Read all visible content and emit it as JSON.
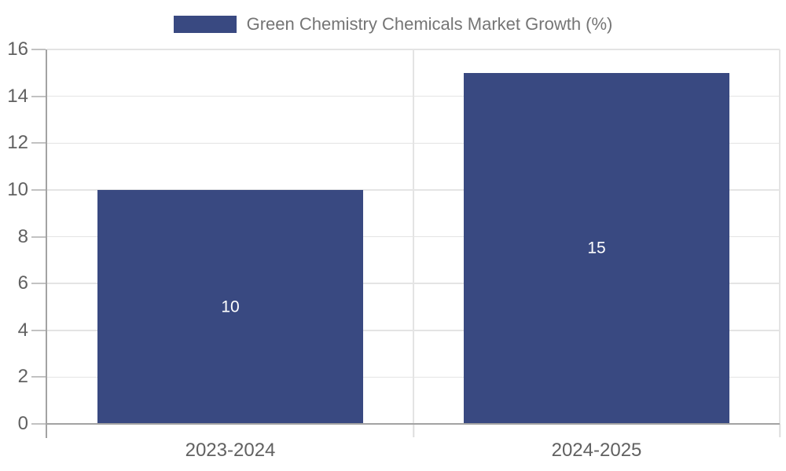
{
  "chart_data": {
    "type": "bar",
    "title": "Green Chemistry Chemicals Market Growth (%)",
    "series_name": "Green Chemistry Chemicals Market Growth (%)",
    "categories": [
      "2023-2024",
      "2024-2025"
    ],
    "values": [
      10,
      15
    ],
    "xlabel": "",
    "ylabel": "",
    "ylim": [
      0,
      16
    ],
    "ytick_step": 2,
    "yticks": [
      0,
      2,
      4,
      6,
      8,
      10,
      12,
      14,
      16
    ],
    "grid": true,
    "legend_position": "top-center",
    "bar_color": "#394981",
    "bar_label_color": "#ffffff",
    "bar_width_fraction": 0.725
  }
}
